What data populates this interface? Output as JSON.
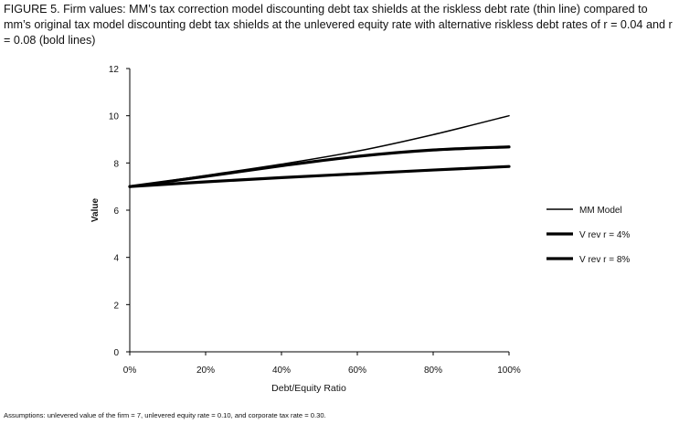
{
  "caption": "FIGURE 5. Firm values: MM’s tax correction model discounting debt tax shields at the riskless debt rate (thin line) compared to mm’s original tax model discounting debt tax shields at the unlevered equity rate with alternative riskless debt rates of r = 0.04 and r = 0.08 (bold lines)",
  "note": "Assumptions: unlevered value of the firm = 7, unlevered equity rate = 0.10, and corporate tax rate = 0.30.",
  "colors": {
    "line": "#000000",
    "text": "#111111"
  },
  "chart_data": {
    "type": "line",
    "title": "",
    "xlabel": "Debt/Equity Ratio",
    "ylabel": "Value",
    "x": [
      0,
      0.2,
      0.4,
      0.6,
      0.8,
      1.0
    ],
    "x_tick_labels": [
      "0%",
      "20%",
      "40%",
      "60%",
      "80%",
      "100%"
    ],
    "y_ticks": [
      0,
      2,
      4,
      6,
      8,
      10,
      12
    ],
    "y_tick_labels": [
      "0",
      "2",
      "4",
      "6",
      "8",
      "10",
      "12"
    ],
    "xlim": [
      0,
      1.0
    ],
    "ylim": [
      0,
      12
    ],
    "grid": false,
    "legend_position": "right",
    "series": [
      {
        "name": "MM  Model",
        "values": [
          7.0,
          7.47,
          7.95,
          8.5,
          9.2,
          10.0
        ],
        "weight": "thin"
      },
      {
        "name": "V rev r = 4%",
        "values": [
          7.0,
          7.43,
          7.88,
          8.28,
          8.55,
          8.68
        ],
        "weight": "bold"
      },
      {
        "name": "V rev r = 8%",
        "values": [
          7.0,
          7.2,
          7.38,
          7.54,
          7.7,
          7.85
        ],
        "weight": "bold"
      }
    ]
  }
}
